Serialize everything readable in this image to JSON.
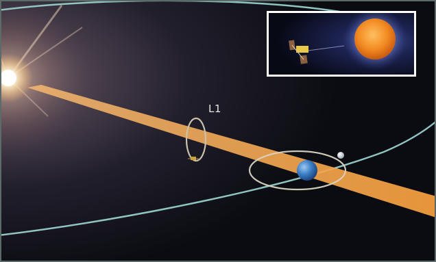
{
  "diagram": {
    "lagrange_point_label": "L1",
    "colors": {
      "background_dark": "#0b0c12",
      "background_warm": "#3a3340",
      "orbit_outer": "#9fd8d2",
      "orbit_earth": "#bfe3dc",
      "halo_orbit": "#c9c3ae",
      "sun_earth_line": "#f29c3c",
      "earth": "#3c7fc7",
      "moon": "#c7d3dc",
      "inset_border": "#ffffff",
      "inset_sun": "#f28a22"
    },
    "icons": {
      "sun": "sun-glare-icon",
      "earth": "earth-icon",
      "moon": "moon-icon",
      "spacecraft": "spacecraft-icon"
    }
  }
}
